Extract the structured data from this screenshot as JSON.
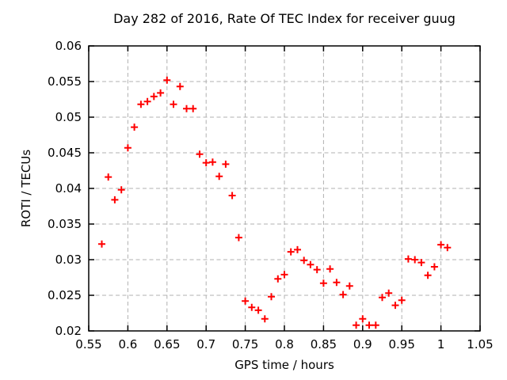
{
  "chart_data": {
    "type": "scatter",
    "title": "Day 282 of 2016, Rate Of TEC Index for receiver guug",
    "xlabel": "GPS time / hours",
    "ylabel": "ROTI / TECUs",
    "xlim": [
      0.55,
      1.05
    ],
    "ylim": [
      0.02,
      0.06
    ],
    "x_tick_values": [
      0.55,
      0.6,
      0.65,
      0.7,
      0.75,
      0.8,
      0.85,
      0.9,
      0.95,
      1,
      1.05
    ],
    "x_tick_labels": [
      "0.55",
      "0.6",
      "0.65",
      "0.7",
      "0.75",
      "0.8",
      "0.85",
      "0.9",
      "0.95",
      "1",
      "1.05"
    ],
    "y_tick_values": [
      0.02,
      0.025,
      0.03,
      0.035,
      0.04,
      0.045,
      0.05,
      0.055,
      0.06
    ],
    "y_tick_labels": [
      "0.02",
      "0.025",
      "0.03",
      "0.035",
      "0.04",
      "0.045",
      "0.05",
      "0.055",
      "0.06"
    ],
    "grid": true,
    "legend": "none",
    "marker": {
      "shape": "plus",
      "color": "#ff0000",
      "size": 9
    },
    "grid_color": "#b0b0b0",
    "frame_color": "#000000",
    "series": [
      {
        "name": "ROTI",
        "points": [
          [
            0.5667,
            0.0322
          ],
          [
            0.575,
            0.0416
          ],
          [
            0.5833,
            0.0384
          ],
          [
            0.5917,
            0.0398
          ],
          [
            0.6,
            0.0457
          ],
          [
            0.6083,
            0.0486
          ],
          [
            0.6167,
            0.0518
          ],
          [
            0.625,
            0.0522
          ],
          [
            0.6333,
            0.0529
          ],
          [
            0.6417,
            0.0534
          ],
          [
            0.65,
            0.0552
          ],
          [
            0.6583,
            0.0518
          ],
          [
            0.6667,
            0.0543
          ],
          [
            0.675,
            0.0512
          ],
          [
            0.6833,
            0.0512
          ],
          [
            0.6917,
            0.0448
          ],
          [
            0.7,
            0.0436
          ],
          [
            0.7083,
            0.0437
          ],
          [
            0.7167,
            0.0417
          ],
          [
            0.725,
            0.0434
          ],
          [
            0.7333,
            0.039
          ],
          [
            0.7417,
            0.0331
          ],
          [
            0.75,
            0.0242
          ],
          [
            0.7583,
            0.0233
          ],
          [
            0.7667,
            0.0229
          ],
          [
            0.775,
            0.0217
          ],
          [
            0.7833,
            0.0248
          ],
          [
            0.7917,
            0.0273
          ],
          [
            0.8,
            0.0279
          ],
          [
            0.8083,
            0.0311
          ],
          [
            0.8167,
            0.0314
          ],
          [
            0.825,
            0.0299
          ],
          [
            0.8333,
            0.0293
          ],
          [
            0.8417,
            0.0286
          ],
          [
            0.85,
            0.0267
          ],
          [
            0.8583,
            0.0287
          ],
          [
            0.8667,
            0.0268
          ],
          [
            0.875,
            0.0251
          ],
          [
            0.8833,
            0.0263
          ],
          [
            0.8917,
            0.0208
          ],
          [
            0.9,
            0.0217
          ],
          [
            0.9083,
            0.0208
          ],
          [
            0.9167,
            0.0208
          ],
          [
            0.925,
            0.0247
          ],
          [
            0.9333,
            0.0253
          ],
          [
            0.9417,
            0.0236
          ],
          [
            0.95,
            0.0243
          ],
          [
            0.9583,
            0.0301
          ],
          [
            0.9667,
            0.03
          ],
          [
            0.975,
            0.0296
          ],
          [
            0.9833,
            0.0278
          ],
          [
            0.9917,
            0.029
          ],
          [
            1,
            0.0321
          ],
          [
            1.0083,
            0.0317
          ]
        ]
      }
    ]
  }
}
